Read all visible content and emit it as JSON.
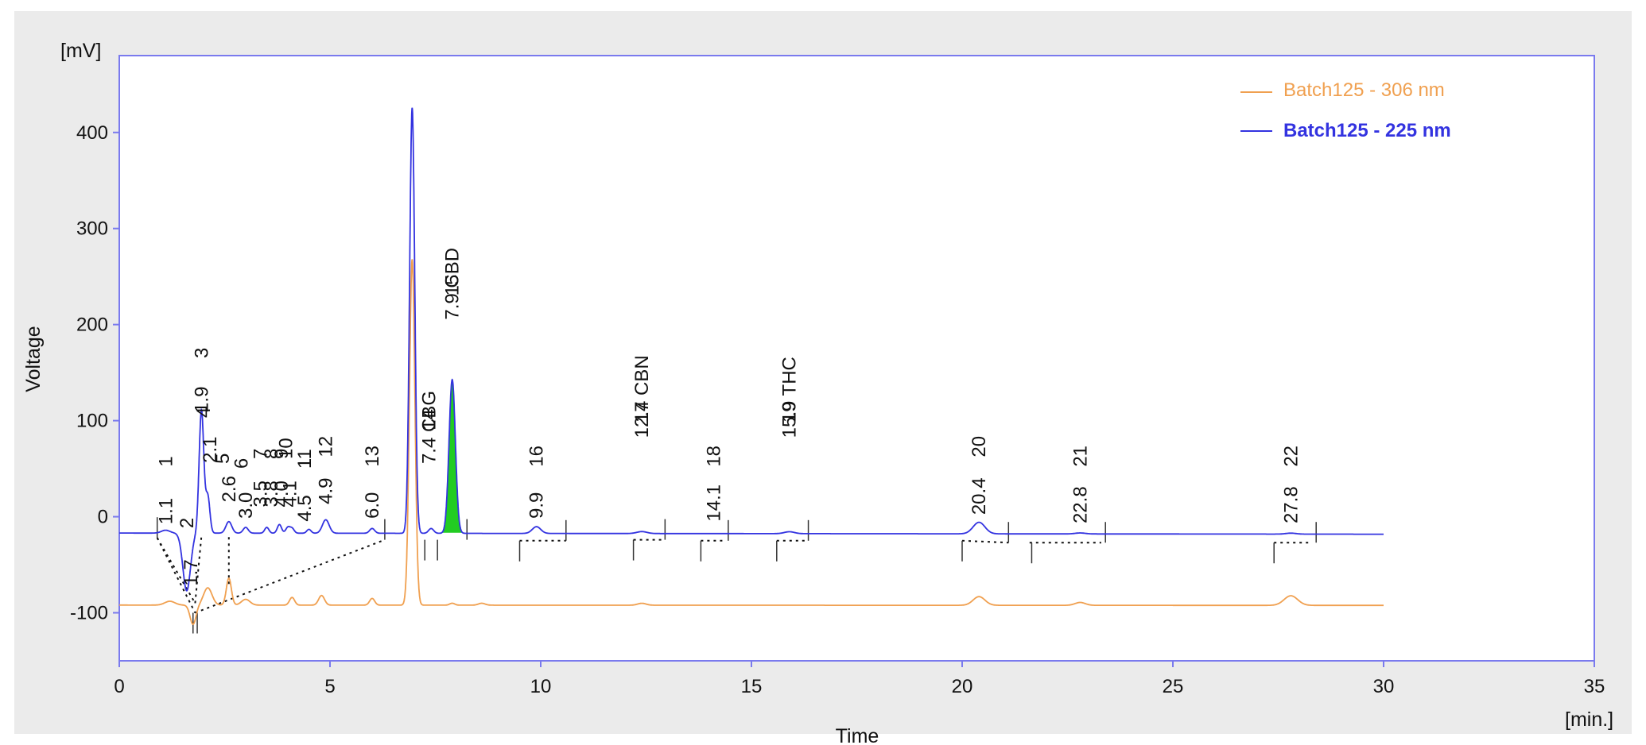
{
  "chart_data": {
    "type": "line",
    "title": "",
    "xlabel": "Time",
    "ylabel": "Voltage",
    "x_unit": "[min.]",
    "y_unit": "[mV]",
    "xlim": [
      0,
      35
    ],
    "ylim": [
      -150,
      480
    ],
    "x_ticks": [
      0,
      5,
      10,
      15,
      20,
      25,
      30,
      35
    ],
    "x_tick_labels": [
      "0",
      "5",
      "10",
      "15",
      "20",
      "25",
      "30",
      "35"
    ],
    "y_ticks": [
      -100,
      0,
      100,
      200,
      300,
      400
    ],
    "y_tick_labels": [
      "-100",
      "0",
      "100",
      "200",
      "300",
      "400"
    ],
    "legend_position": "top-right",
    "highlighted_peak_color": "#22cc22",
    "series": [
      {
        "name": "Batch125 - 306 nm",
        "color": "#f0a050",
        "baseline": -92,
        "baseline_slope": -0.1,
        "x_end": 30,
        "peaks": [
          {
            "t": 1.2,
            "h": 4,
            "w": 0.12
          },
          {
            "t": 1.75,
            "h": -20,
            "w": 0.07
          },
          {
            "t": 2.1,
            "h": 18,
            "w": 0.1
          },
          {
            "t": 2.6,
            "h": 28,
            "w": 0.06
          },
          {
            "t": 3.0,
            "h": 6,
            "w": 0.1
          },
          {
            "t": 4.1,
            "h": 8,
            "w": 0.06
          },
          {
            "t": 4.8,
            "h": 10,
            "w": 0.07
          },
          {
            "t": 6.0,
            "h": 7,
            "w": 0.06
          },
          {
            "t": 6.95,
            "h": 360,
            "w": 0.065
          },
          {
            "t": 7.9,
            "h": 2,
            "w": 0.06
          },
          {
            "t": 8.6,
            "h": 2,
            "w": 0.08
          },
          {
            "t": 12.4,
            "h": 2,
            "w": 0.1
          },
          {
            "t": 20.4,
            "h": 9,
            "w": 0.14
          },
          {
            "t": 22.8,
            "h": 3,
            "w": 0.12
          },
          {
            "t": 27.8,
            "h": 10,
            "w": 0.16
          }
        ]
      },
      {
        "name": "Batch125 - 225 nm",
        "color": "#3333e0",
        "baseline": -17,
        "baseline_slope": -0.4,
        "x_end": 30,
        "peaks": [
          {
            "t": 1.1,
            "h": 3,
            "w": 0.1
          },
          {
            "t": 1.6,
            "h": -60,
            "w": 0.09
          },
          {
            "t": 1.95,
            "h": 128,
            "w": 0.055
          },
          {
            "t": 2.1,
            "h": 38,
            "w": 0.05
          },
          {
            "t": 2.6,
            "h": 12,
            "w": 0.07
          },
          {
            "t": 3.0,
            "h": 6,
            "w": 0.06
          },
          {
            "t": 3.5,
            "h": 6,
            "w": 0.05
          },
          {
            "t": 3.8,
            "h": 9,
            "w": 0.05
          },
          {
            "t": 4.0,
            "h": 6,
            "w": 0.05
          },
          {
            "t": 4.1,
            "h": 5,
            "w": 0.05
          },
          {
            "t": 4.5,
            "h": 4,
            "w": 0.05
          },
          {
            "t": 4.9,
            "h": 14,
            "w": 0.08
          },
          {
            "t": 6.0,
            "h": 5,
            "w": 0.06
          },
          {
            "t": 6.95,
            "h": 443,
            "w": 0.06
          },
          {
            "t": 7.4,
            "h": 5,
            "w": 0.06
          },
          {
            "t": 7.9,
            "h": 160,
            "w": 0.075
          },
          {
            "t": 9.9,
            "h": 7,
            "w": 0.1
          },
          {
            "t": 12.4,
            "h": 2,
            "w": 0.12
          },
          {
            "t": 15.9,
            "h": 2,
            "w": 0.12
          },
          {
            "t": 20.4,
            "h": 12,
            "w": 0.14
          },
          {
            "t": 22.8,
            "h": 1,
            "w": 0.12
          },
          {
            "t": 27.8,
            "h": 1,
            "w": 0.12
          }
        ]
      }
    ],
    "baseline_segments": [
      [
        [
          0.9,
          -22
        ],
        [
          1.8,
          -100
        ]
      ],
      [
        [
          0.9,
          -22
        ],
        [
          1.8,
          -90
        ]
      ],
      [
        [
          1.8,
          -100
        ],
        [
          6.3,
          -24
        ]
      ],
      [
        [
          1.8,
          -90
        ],
        [
          1.95,
          -20
        ]
      ],
      [
        [
          2.6,
          -70
        ],
        [
          2.6,
          -18
        ]
      ],
      [
        [
          9.5,
          -25
        ],
        [
          10.6,
          -25
        ]
      ],
      [
        [
          12.2,
          -24
        ],
        [
          12.9,
          -24
        ]
      ],
      [
        [
          13.8,
          -25
        ],
        [
          14.4,
          -25
        ]
      ],
      [
        [
          15.6,
          -25
        ],
        [
          16.3,
          -25
        ]
      ],
      [
        [
          20.0,
          -25
        ],
        [
          21.1,
          -27
        ]
      ],
      [
        [
          21.6,
          -27
        ],
        [
          23.3,
          -27
        ]
      ],
      [
        [
          27.4,
          -27
        ],
        [
          28.3,
          -27
        ]
      ]
    ],
    "marker_ticks": [
      {
        "t": 0.9,
        "y": -22,
        "dir": "up"
      },
      {
        "t": 1.75,
        "y": -100,
        "dir": "down"
      },
      {
        "t": 1.85,
        "y": -100,
        "dir": "down"
      },
      {
        "t": 6.3,
        "y": -24,
        "dir": "up"
      },
      {
        "t": 7.25,
        "y": -24,
        "dir": "down"
      },
      {
        "t": 7.55,
        "y": -24,
        "dir": "down"
      },
      {
        "t": 8.25,
        "y": -24,
        "dir": "up"
      },
      {
        "t": 9.5,
        "y": -25,
        "dir": "down"
      },
      {
        "t": 10.6,
        "y": -25,
        "dir": "up"
      },
      {
        "t": 12.2,
        "y": -24,
        "dir": "down"
      },
      {
        "t": 12.95,
        "y": -24,
        "dir": "up"
      },
      {
        "t": 13.8,
        "y": -25,
        "dir": "down"
      },
      {
        "t": 14.45,
        "y": -25,
        "dir": "up"
      },
      {
        "t": 15.6,
        "y": -25,
        "dir": "down"
      },
      {
        "t": 16.35,
        "y": -25,
        "dir": "up"
      },
      {
        "t": 20.0,
        "y": -25,
        "dir": "down"
      },
      {
        "t": 21.1,
        "y": -27,
        "dir": "up"
      },
      {
        "t": 21.65,
        "y": -27,
        "dir": "down"
      },
      {
        "t": 23.4,
        "y": -27,
        "dir": "up"
      },
      {
        "t": 27.4,
        "y": -27,
        "dir": "down"
      },
      {
        "t": 28.4,
        "y": -27,
        "dir": "up"
      }
    ],
    "peak_labels": [
      {
        "t": 1.1,
        "y": -8,
        "text": "1.1"
      },
      {
        "t": 1.1,
        "y": 52,
        "text": "1"
      },
      {
        "t": 1.6,
        "y": -12,
        "text": "2"
      },
      {
        "t": 1.7,
        "y": -72,
        "text": "1.7"
      },
      {
        "t": 1.95,
        "y": 108,
        "text": "1.9"
      },
      {
        "t": 1.95,
        "y": 165,
        "text": "3"
      },
      {
        "t": 2.0,
        "y": 103,
        "text": "4"
      },
      {
        "t": 2.15,
        "y": 56,
        "text": "2.1"
      },
      {
        "t": 2.45,
        "y": 55,
        "text": "5"
      },
      {
        "t": 2.6,
        "y": 15,
        "text": "2.6"
      },
      {
        "t": 2.9,
        "y": 50,
        "text": "6"
      },
      {
        "t": 3.0,
        "y": -2,
        "text": "3.0"
      },
      {
        "t": 3.35,
        "y": 60,
        "text": "7"
      },
      {
        "t": 3.35,
        "y": 10,
        "text": "3.5"
      },
      {
        "t": 3.6,
        "y": 60,
        "text": "8"
      },
      {
        "t": 3.6,
        "y": 10,
        "text": "3.8"
      },
      {
        "t": 3.85,
        "y": 60,
        "text": "9"
      },
      {
        "t": 3.85,
        "y": 10,
        "text": "4.0"
      },
      {
        "t": 3.95,
        "y": 60,
        "text": "10"
      },
      {
        "t": 4.05,
        "y": 10,
        "text": "4.1"
      },
      {
        "t": 4.4,
        "y": 50,
        "text": "11"
      },
      {
        "t": 4.4,
        "y": -5,
        "text": "4.5"
      },
      {
        "t": 4.9,
        "y": 62,
        "text": "12"
      },
      {
        "t": 4.9,
        "y": 13,
        "text": "4.9"
      },
      {
        "t": 6.0,
        "y": 52,
        "text": "13"
      },
      {
        "t": 6.0,
        "y": -2,
        "text": "6.0"
      },
      {
        "t": 7.35,
        "y": 90,
        "text": "14"
      },
      {
        "t": 7.35,
        "y": 55,
        "text": "7.4 CBG"
      },
      {
        "t": 7.9,
        "y": 230,
        "text": "15"
      },
      {
        "t": 7.9,
        "y": 205,
        "text": "7.9 CBD"
      },
      {
        "t": 9.9,
        "y": 52,
        "text": "16"
      },
      {
        "t": 9.9,
        "y": -2,
        "text": "9.9"
      },
      {
        "t": 12.4,
        "y": 98,
        "text": "17"
      },
      {
        "t": 12.4,
        "y": 82,
        "text": "12.4 CBN"
      },
      {
        "t": 14.1,
        "y": 52,
        "text": "18"
      },
      {
        "t": 14.1,
        "y": -5,
        "text": "14.1"
      },
      {
        "t": 15.9,
        "y": 98,
        "text": "19"
      },
      {
        "t": 15.9,
        "y": 82,
        "text": "15.9 THC"
      },
      {
        "t": 20.4,
        "y": 62,
        "text": "20"
      },
      {
        "t": 20.4,
        "y": 2,
        "text": "20.4"
      },
      {
        "t": 22.8,
        "y": 52,
        "text": "21"
      },
      {
        "t": 22.8,
        "y": -7,
        "text": "22.8"
      },
      {
        "t": 27.8,
        "y": 52,
        "text": "22"
      },
      {
        "t": 27.8,
        "y": -7,
        "text": "27.8"
      }
    ]
  }
}
